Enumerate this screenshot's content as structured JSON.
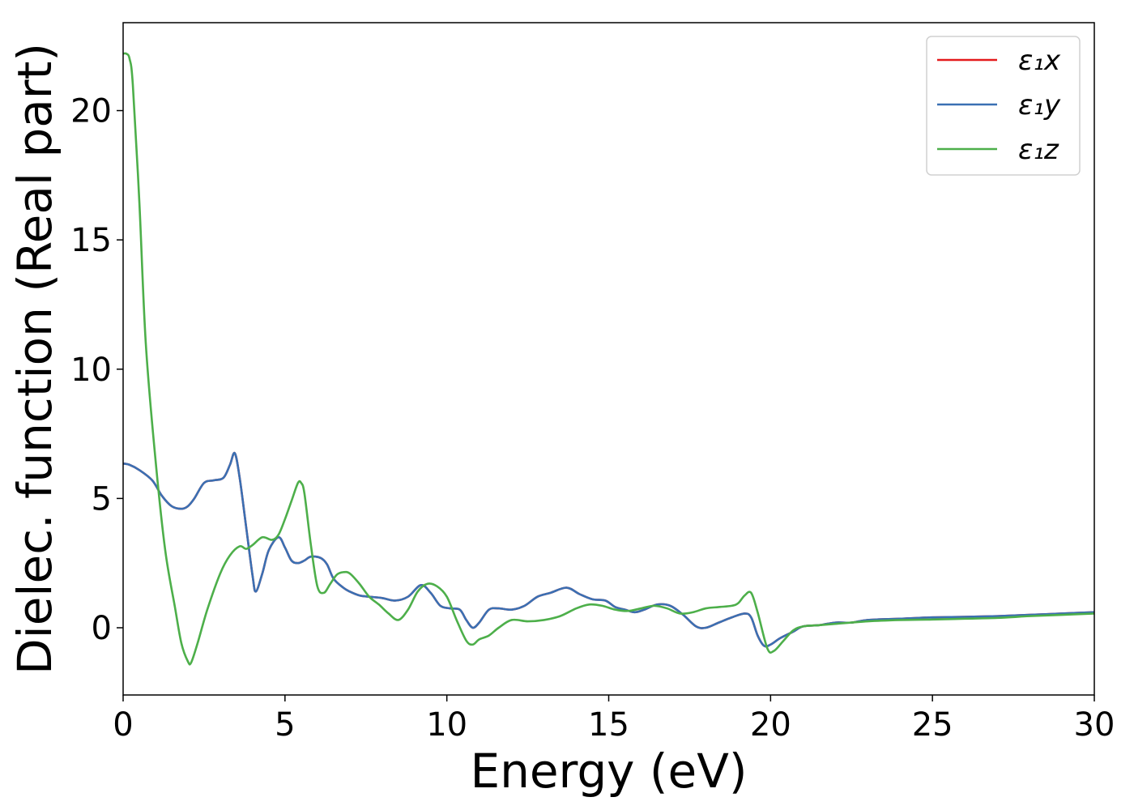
{
  "chart_data": {
    "type": "line",
    "xlabel": "Energy (eV)",
    "ylabel": "Dielec. function (Real part)",
    "xlim": [
      0,
      30
    ],
    "ylim": [
      -2.6,
      23.4
    ],
    "xticks": [
      0,
      5,
      10,
      15,
      20,
      25,
      30
    ],
    "yticks": [
      0,
      5,
      10,
      15,
      20
    ],
    "grid": false,
    "legend_position": "top-right",
    "series": [
      {
        "name": "ε₁x",
        "color": "#e41a1c",
        "x": [
          0,
          0.2,
          0.5,
          0.9,
          1.2,
          1.5,
          1.8,
          2.0,
          2.2,
          2.5,
          2.8,
          3.1,
          3.3,
          3.45,
          3.6,
          3.8,
          4.0,
          4.1,
          4.3,
          4.5,
          4.8,
          5.0,
          5.2,
          5.4,
          5.6,
          5.8,
          6.1,
          6.3,
          6.5,
          6.8,
          7.0,
          7.3,
          7.6,
          8.0,
          8.4,
          8.8,
          9.2,
          9.5,
          9.8,
          10.1,
          10.4,
          10.6,
          10.8,
          11.0,
          11.3,
          11.6,
          12.0,
          12.4,
          12.8,
          13.2,
          13.7,
          14.1,
          14.5,
          14.9,
          15.2,
          15.5,
          15.8,
          16.1,
          16.5,
          16.9,
          17.3,
          17.7,
          18.0,
          18.4,
          18.8,
          19.2,
          19.4,
          19.6,
          19.8,
          20.0,
          20.3,
          20.7,
          21.0,
          21.5,
          22.0,
          22.5,
          23.0,
          24.0,
          25.0,
          26.0,
          27.0,
          28.0,
          29.0,
          30.0
        ],
        "values": [
          6.35,
          6.3,
          6.1,
          5.7,
          5.1,
          4.7,
          4.6,
          4.7,
          5.0,
          5.6,
          5.7,
          5.8,
          6.3,
          6.75,
          5.8,
          3.9,
          2.0,
          1.4,
          2.1,
          3.0,
          3.5,
          3.1,
          2.6,
          2.5,
          2.6,
          2.75,
          2.7,
          2.45,
          1.9,
          1.55,
          1.4,
          1.25,
          1.2,
          1.15,
          1.05,
          1.2,
          1.65,
          1.35,
          0.85,
          0.75,
          0.7,
          0.3,
          0.0,
          0.2,
          0.7,
          0.75,
          0.7,
          0.85,
          1.2,
          1.35,
          1.55,
          1.3,
          1.1,
          1.05,
          0.8,
          0.7,
          0.6,
          0.7,
          0.9,
          0.85,
          0.5,
          0.05,
          0.0,
          0.2,
          0.4,
          0.55,
          0.4,
          -0.3,
          -0.7,
          -0.65,
          -0.4,
          -0.15,
          0.05,
          0.1,
          0.2,
          0.2,
          0.3,
          0.35,
          0.4,
          0.42,
          0.45,
          0.5,
          0.55,
          0.6
        ]
      },
      {
        "name": "ε₁y",
        "color": "#3a70b3",
        "x": [
          0,
          0.2,
          0.5,
          0.9,
          1.2,
          1.5,
          1.8,
          2.0,
          2.2,
          2.5,
          2.8,
          3.1,
          3.3,
          3.45,
          3.6,
          3.8,
          4.0,
          4.1,
          4.3,
          4.5,
          4.8,
          5.0,
          5.2,
          5.4,
          5.6,
          5.8,
          6.1,
          6.3,
          6.5,
          6.8,
          7.0,
          7.3,
          7.6,
          8.0,
          8.4,
          8.8,
          9.2,
          9.5,
          9.8,
          10.1,
          10.4,
          10.6,
          10.8,
          11.0,
          11.3,
          11.6,
          12.0,
          12.4,
          12.8,
          13.2,
          13.7,
          14.1,
          14.5,
          14.9,
          15.2,
          15.5,
          15.8,
          16.1,
          16.5,
          16.9,
          17.3,
          17.7,
          18.0,
          18.4,
          18.8,
          19.2,
          19.4,
          19.6,
          19.8,
          20.0,
          20.3,
          20.7,
          21.0,
          21.5,
          22.0,
          22.5,
          23.0,
          24.0,
          25.0,
          26.0,
          27.0,
          28.0,
          29.0,
          30.0
        ],
        "values": [
          6.35,
          6.3,
          6.1,
          5.7,
          5.1,
          4.7,
          4.6,
          4.7,
          5.0,
          5.6,
          5.7,
          5.8,
          6.3,
          6.75,
          5.8,
          3.9,
          2.0,
          1.4,
          2.1,
          3.0,
          3.5,
          3.1,
          2.6,
          2.5,
          2.6,
          2.75,
          2.7,
          2.45,
          1.9,
          1.55,
          1.4,
          1.25,
          1.2,
          1.15,
          1.05,
          1.2,
          1.65,
          1.35,
          0.85,
          0.75,
          0.7,
          0.3,
          0.0,
          0.2,
          0.7,
          0.75,
          0.7,
          0.85,
          1.2,
          1.35,
          1.55,
          1.3,
          1.1,
          1.05,
          0.8,
          0.7,
          0.6,
          0.7,
          0.9,
          0.85,
          0.5,
          0.05,
          0.0,
          0.2,
          0.4,
          0.55,
          0.4,
          -0.3,
          -0.7,
          -0.65,
          -0.4,
          -0.15,
          0.05,
          0.1,
          0.2,
          0.2,
          0.3,
          0.35,
          0.4,
          0.42,
          0.45,
          0.5,
          0.55,
          0.6
        ]
      },
      {
        "name": "ε₁z",
        "color": "#4daf4a",
        "x": [
          0,
          0.1,
          0.2,
          0.3,
          0.5,
          0.7,
          1.0,
          1.3,
          1.6,
          1.8,
          2.0,
          2.1,
          2.3,
          2.6,
          3.0,
          3.3,
          3.6,
          3.8,
          4.0,
          4.3,
          4.6,
          4.8,
          5.0,
          5.2,
          5.4,
          5.5,
          5.6,
          5.8,
          6.0,
          6.2,
          6.4,
          6.6,
          6.8,
          7.0,
          7.3,
          7.6,
          7.9,
          8.2,
          8.5,
          8.8,
          9.1,
          9.4,
          9.7,
          10.0,
          10.3,
          10.6,
          10.8,
          11.0,
          11.3,
          11.6,
          12.0,
          12.5,
          13.0,
          13.5,
          14.0,
          14.4,
          14.8,
          15.2,
          15.6,
          16.0,
          16.4,
          16.8,
          17.2,
          17.6,
          18.0,
          18.4,
          18.8,
          19.0,
          19.2,
          19.4,
          19.6,
          19.9,
          20.1,
          20.4,
          20.7,
          21.0,
          21.5,
          22.0,
          23.0,
          24.0,
          25.0,
          26.0,
          27.0,
          28.0,
          29.0,
          30.0
        ],
        "values": [
          22.2,
          22.2,
          22.0,
          21.0,
          16.5,
          11.0,
          6.5,
          3.0,
          0.8,
          -0.6,
          -1.3,
          -1.35,
          -0.6,
          0.7,
          2.1,
          2.8,
          3.15,
          3.05,
          3.2,
          3.5,
          3.4,
          3.6,
          4.2,
          4.9,
          5.6,
          5.6,
          5.2,
          3.2,
          1.6,
          1.35,
          1.7,
          2.05,
          2.15,
          2.1,
          1.7,
          1.2,
          0.9,
          0.55,
          0.3,
          0.7,
          1.4,
          1.7,
          1.6,
          1.2,
          0.3,
          -0.5,
          -0.65,
          -0.45,
          -0.3,
          0.0,
          0.3,
          0.25,
          0.3,
          0.45,
          0.75,
          0.9,
          0.85,
          0.7,
          0.65,
          0.75,
          0.85,
          0.75,
          0.55,
          0.6,
          0.75,
          0.8,
          0.85,
          0.95,
          1.25,
          1.35,
          0.6,
          -0.8,
          -0.9,
          -0.5,
          -0.1,
          0.05,
          0.1,
          0.15,
          0.25,
          0.3,
          0.32,
          0.35,
          0.38,
          0.45,
          0.5,
          0.55
        ]
      }
    ]
  }
}
